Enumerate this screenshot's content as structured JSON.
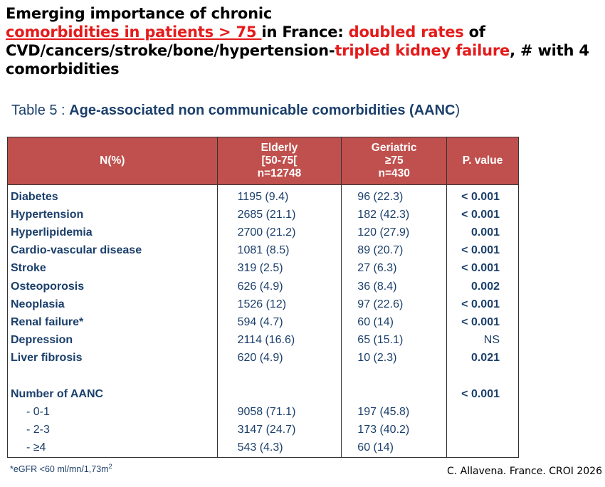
{
  "headline": {
    "line1": "Emerging importance of chronic",
    "red_underlined": "comorbidities in patients > 75 ",
    "part_in_france": "in France: ",
    "red_doubled": "doubled rates",
    "part_of": " of",
    "line3_black": "CVD/cancers/stroke/bone/hypertension-",
    "red_tripled": "tripled kidney failure",
    "line3_tail": ", # with 4",
    "line4": "comorbidities"
  },
  "table_title": {
    "prefix": "Table 5 : ",
    "bold": "Age-associated non communicable comorbidities (AANC",
    "suffix": ")"
  },
  "table": {
    "headers": {
      "col0": "N(%)",
      "col1_l1": "Elderly",
      "col1_l2": "[50-75[",
      "col1_l3": "n=12748",
      "col2_l1": "Geriatric",
      "col2_l2": "≥75",
      "col2_l3": "n=430",
      "col3": "P. value"
    },
    "rows": [
      {
        "label": "Diabetes",
        "elderly": "1195 (9.4)",
        "geriatric": "96 (22.3)",
        "p": "< 0.001"
      },
      {
        "label": "Hypertension",
        "elderly": "2685 (21.1)",
        "geriatric": "182 (42.3)",
        "p": "< 0.001"
      },
      {
        "label": "Hyperlipidemia",
        "elderly": "2700 (21.2)",
        "geriatric": "120 (27.9)",
        "p": "0.001"
      },
      {
        "label": "Cardio-vascular disease",
        "elderly": "1081 (8.5)",
        "geriatric": "89 (20.7)",
        "p": "< 0.001"
      },
      {
        "label": "Stroke",
        "elderly": "319 (2.5)",
        "geriatric": "27 (6.3)",
        "p": "< 0.001"
      },
      {
        "label": "Osteoporosis",
        "elderly": "626 (4.9)",
        "geriatric": "36 (8.4)",
        "p": "0.002"
      },
      {
        "label": "Neoplasia",
        "elderly": "1526 (12)",
        "geriatric": "97 (22.6)",
        "p": "< 0.001"
      },
      {
        "label": "Renal failure*",
        "elderly": "594 (4.7)",
        "geriatric": "60 (14)",
        "p": "< 0.001"
      },
      {
        "label": "Depression",
        "elderly": "2114 (16.6)",
        "geriatric": "65 (15.1)",
        "p": "NS"
      },
      {
        "label": "Liver fibrosis",
        "elderly": "620 (4.9)",
        "geriatric": "10 (2.3)",
        "p": "0.021"
      }
    ],
    "aanc": {
      "label": "Number of AANC",
      "p": "< 0.001",
      "rows": [
        {
          "label": "-  0-1",
          "elderly": "9058 (71.1)",
          "geriatric": "197 (45.8)"
        },
        {
          "label": "-  2-3",
          "elderly": "3147 (24.7)",
          "geriatric": "173 (40.2)"
        },
        {
          "label": "-  ≥4",
          "elderly": "543 (4.3)",
          "geriatric": "60 (14)"
        }
      ]
    }
  },
  "footnote": {
    "text": "*eGFR <60 ml/mn/1,73m",
    "sup": "2"
  },
  "credit": "C. Allavena. France. CROI 2026"
}
